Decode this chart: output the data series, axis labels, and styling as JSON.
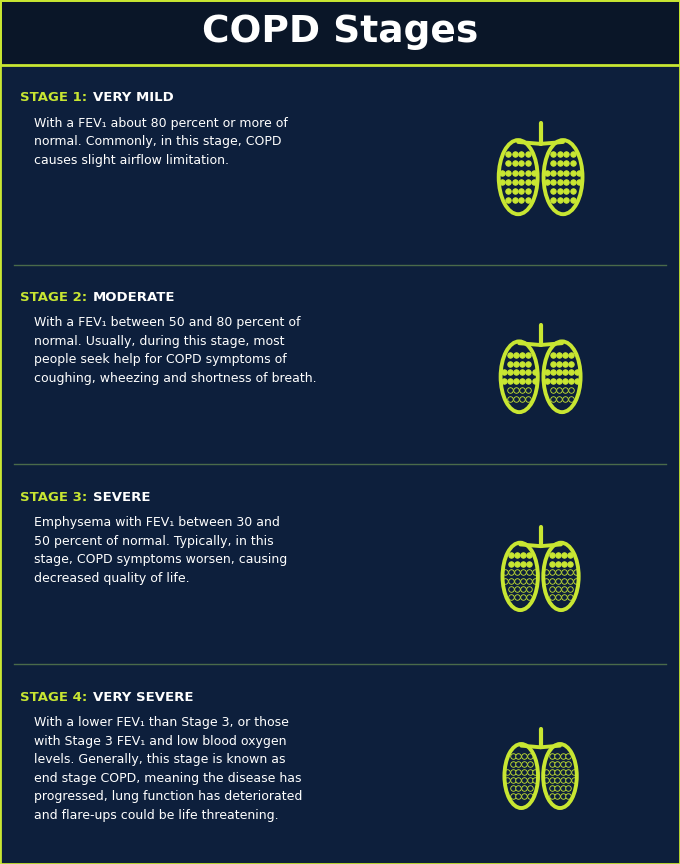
{
  "title": "COPD Stages",
  "title_color": "#ffffff",
  "title_bg_color": "#0a1628",
  "bg_color": "#0d1f3c",
  "accent_color": "#c8e632",
  "text_color": "#ffffff",
  "divider_color": "#4a6a4a",
  "stages": [
    {
      "stage_label": "STAGE 1:",
      "stage_name": "VERY MILD",
      "description": "With a FEV₁ about 80 percent or more of\nnormal. Commonly, in this stage, COPD\ncauses slight airflow limitation.",
      "lung_fill_ratio": 0.9,
      "lung_size": 0.11
    },
    {
      "stage_label": "STAGE 2:",
      "stage_name": "MODERATE",
      "description": "With a FEV₁ between 50 and 80 percent of\nnormal. Usually, during this stage, most\npeople seek help for COPD symptoms of\ncoughing, wheezing and shortness of breath.",
      "lung_fill_ratio": 0.6,
      "lung_size": 0.105
    },
    {
      "stage_label": "STAGE 3:",
      "stage_name": "SEVERE",
      "description": "Emphysema with FEV₁ between 30 and\n50 percent of normal. Typically, in this\nstage, COPD symptoms worsen, causing\ndecreased quality of life.",
      "lung_fill_ratio": 0.35,
      "lung_size": 0.1
    },
    {
      "stage_label": "STAGE 4:",
      "stage_name": "VERY SEVERE",
      "description": "With a lower FEV₁ than Stage 3, or those\nwith Stage 3 FEV₁ and low blood oxygen\nlevels. Generally, this stage is known as\nend stage COPD, meaning the disease has\nprogressed, lung function has deteriorated\nand flare-ups could be life threatening.",
      "lung_fill_ratio": 0.12,
      "lung_size": 0.095
    }
  ]
}
